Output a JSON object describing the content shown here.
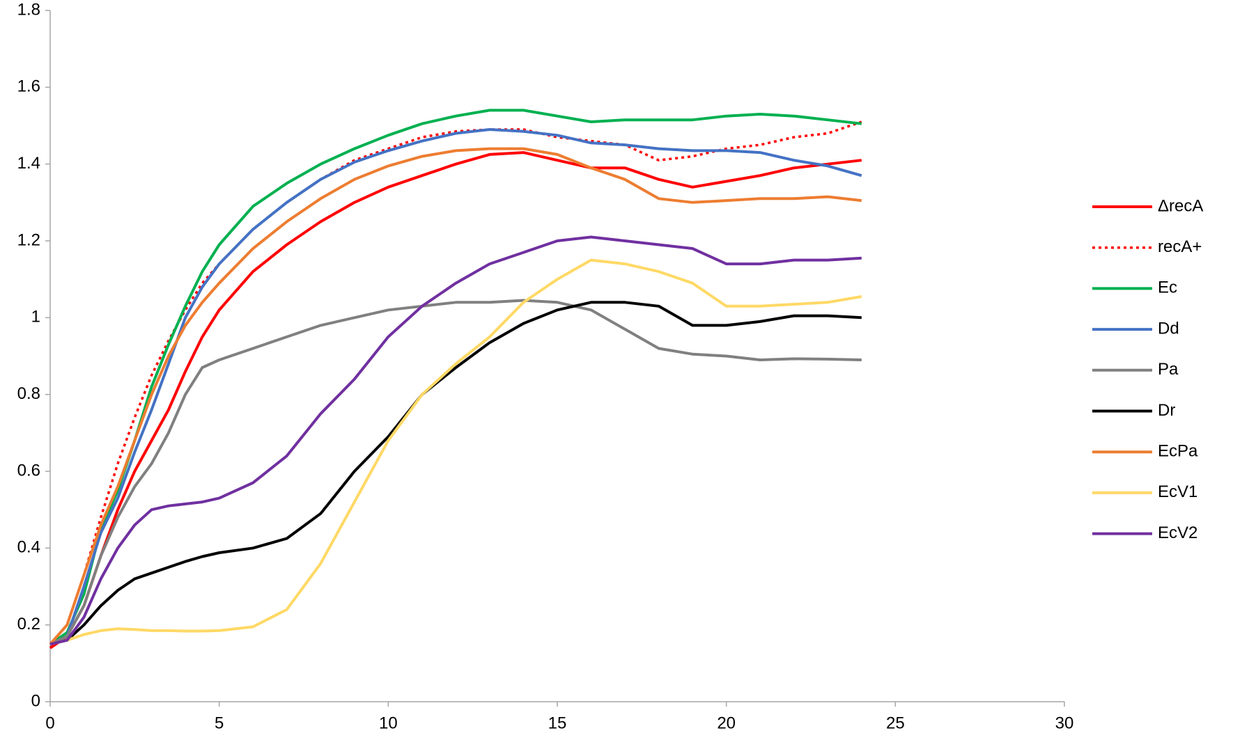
{
  "chart_data": {
    "type": "line",
    "x": [
      0,
      0.5,
      1,
      1.5,
      2,
      2.5,
      3,
      3.5,
      4,
      4.5,
      5,
      6,
      7,
      8,
      9,
      10,
      11,
      12,
      13,
      14,
      15,
      16,
      17,
      18,
      19,
      20,
      21,
      22,
      23,
      24
    ],
    "xlim": [
      0,
      30
    ],
    "xticks": [
      0,
      5,
      10,
      15,
      20,
      25,
      30
    ],
    "ylim": [
      0,
      1.8
    ],
    "yticks": [
      0,
      0.2,
      0.4,
      0.6,
      0.8,
      1,
      1.2,
      1.4,
      1.6,
      1.8
    ],
    "grid": false,
    "legend": "right",
    "series": [
      {
        "name": "ΔrecA",
        "color": "#ff0000",
        "values": [
          0.14,
          0.17,
          0.25,
          0.38,
          0.5,
          0.6,
          0.68,
          0.76,
          0.86,
          0.95,
          1.02,
          1.12,
          1.19,
          1.25,
          1.3,
          1.34,
          1.37,
          1.4,
          1.425,
          1.43,
          1.41,
          1.39,
          1.39,
          1.36,
          1.34,
          1.355,
          1.37,
          1.39,
          1.4,
          1.41
        ]
      },
      {
        "name": "recA+",
        "color": "#ff0000",
        "linestyle": "dotted",
        "values": [
          0.15,
          0.2,
          0.33,
          0.48,
          0.62,
          0.74,
          0.85,
          0.94,
          1.02,
          1.09,
          1.14,
          1.23,
          1.3,
          1.36,
          1.41,
          1.44,
          1.47,
          1.485,
          1.49,
          1.49,
          1.47,
          1.46,
          1.45,
          1.41,
          1.42,
          1.44,
          1.45,
          1.47,
          1.48,
          1.51
        ]
      },
      {
        "name": "Ec",
        "color": "#00b050",
        "values": [
          0.15,
          0.18,
          0.28,
          0.45,
          0.55,
          0.68,
          0.82,
          0.93,
          1.03,
          1.12,
          1.19,
          1.29,
          1.35,
          1.4,
          1.44,
          1.475,
          1.505,
          1.525,
          1.54,
          1.54,
          1.525,
          1.51,
          1.515,
          1.515,
          1.515,
          1.525,
          1.53,
          1.525,
          1.515,
          1.505
        ]
      },
      {
        "name": "Dd",
        "color": "#4472c4",
        "values": [
          0.15,
          0.17,
          0.3,
          0.44,
          0.53,
          0.65,
          0.76,
          0.88,
          1.0,
          1.08,
          1.14,
          1.23,
          1.3,
          1.36,
          1.405,
          1.435,
          1.46,
          1.48,
          1.49,
          1.485,
          1.475,
          1.455,
          1.45,
          1.44,
          1.435,
          1.435,
          1.43,
          1.41,
          1.395,
          1.37
        ]
      },
      {
        "name": "Pa",
        "color": "#808080",
        "values": [
          0.15,
          0.17,
          0.25,
          0.38,
          0.48,
          0.56,
          0.62,
          0.7,
          0.8,
          0.87,
          0.89,
          0.92,
          0.95,
          0.98,
          1.0,
          1.02,
          1.03,
          1.04,
          1.04,
          1.045,
          1.04,
          1.02,
          0.97,
          0.92,
          0.905,
          0.9,
          0.89,
          0.893,
          0.892,
          0.89
        ]
      },
      {
        "name": "Dr",
        "color": "#000000",
        "values": [
          0.15,
          0.16,
          0.2,
          0.25,
          0.29,
          0.32,
          0.335,
          0.35,
          0.365,
          0.378,
          0.388,
          0.4,
          0.425,
          0.49,
          0.6,
          0.69,
          0.8,
          0.87,
          0.935,
          0.985,
          1.02,
          1.04,
          1.04,
          1.03,
          0.98,
          0.98,
          0.99,
          1.005,
          1.005,
          1.0
        ]
      },
      {
        "name": "EcPa",
        "color": "#ed7d31",
        "values": [
          0.15,
          0.2,
          0.33,
          0.46,
          0.56,
          0.68,
          0.8,
          0.9,
          0.98,
          1.04,
          1.09,
          1.18,
          1.25,
          1.31,
          1.36,
          1.395,
          1.42,
          1.435,
          1.44,
          1.44,
          1.425,
          1.39,
          1.36,
          1.31,
          1.3,
          1.305,
          1.31,
          1.31,
          1.315,
          1.305
        ]
      },
      {
        "name": "EcV1",
        "color": "#ffd966",
        "values": [
          0.15,
          0.16,
          0.175,
          0.185,
          0.19,
          0.188,
          0.185,
          0.185,
          0.184,
          0.184,
          0.185,
          0.195,
          0.24,
          0.36,
          0.52,
          0.68,
          0.8,
          0.88,
          0.95,
          1.04,
          1.1,
          1.15,
          1.14,
          1.12,
          1.09,
          1.03,
          1.03,
          1.035,
          1.04,
          1.055
        ]
      },
      {
        "name": "EcV2",
        "color": "#7030a0",
        "values": [
          0.15,
          0.16,
          0.22,
          0.32,
          0.4,
          0.46,
          0.5,
          0.51,
          0.515,
          0.52,
          0.53,
          0.57,
          0.64,
          0.75,
          0.84,
          0.95,
          1.03,
          1.09,
          1.14,
          1.17,
          1.2,
          1.21,
          1.2,
          1.19,
          1.18,
          1.14,
          1.14,
          1.15,
          1.15,
          1.155
        ]
      }
    ]
  }
}
